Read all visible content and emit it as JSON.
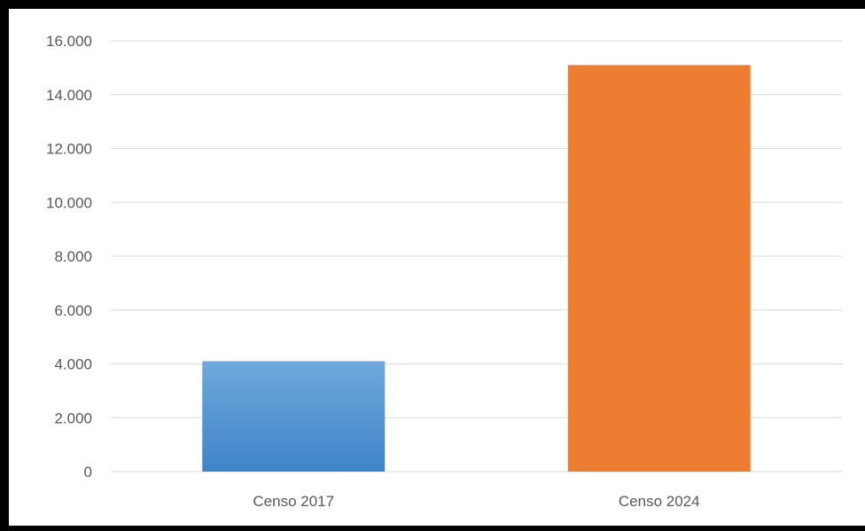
{
  "chart_data": {
    "type": "bar",
    "title": "",
    "xlabel": "",
    "ylabel": "",
    "categories": [
      "Censo 2017",
      "Censo 2024"
    ],
    "values": [
      4100,
      15100
    ],
    "ylim": [
      0,
      16000
    ],
    "y_ticks": [
      0,
      2000,
      4000,
      6000,
      8000,
      10000,
      12000,
      14000,
      16000
    ],
    "y_tick_labels": [
      "0",
      "2.000",
      "4.000",
      "6.000",
      "8.000",
      "10.000",
      "12.000",
      "14.000",
      "16.000"
    ],
    "grid": true,
    "legend": "none",
    "colors": [
      "#5b9bd5",
      "#ed7d31"
    ],
    "gradient_colors": [
      [
        "#6fa8dc",
        "#3d85c8"
      ],
      [
        "#ed7d31",
        "#ed7d31"
      ]
    ]
  }
}
